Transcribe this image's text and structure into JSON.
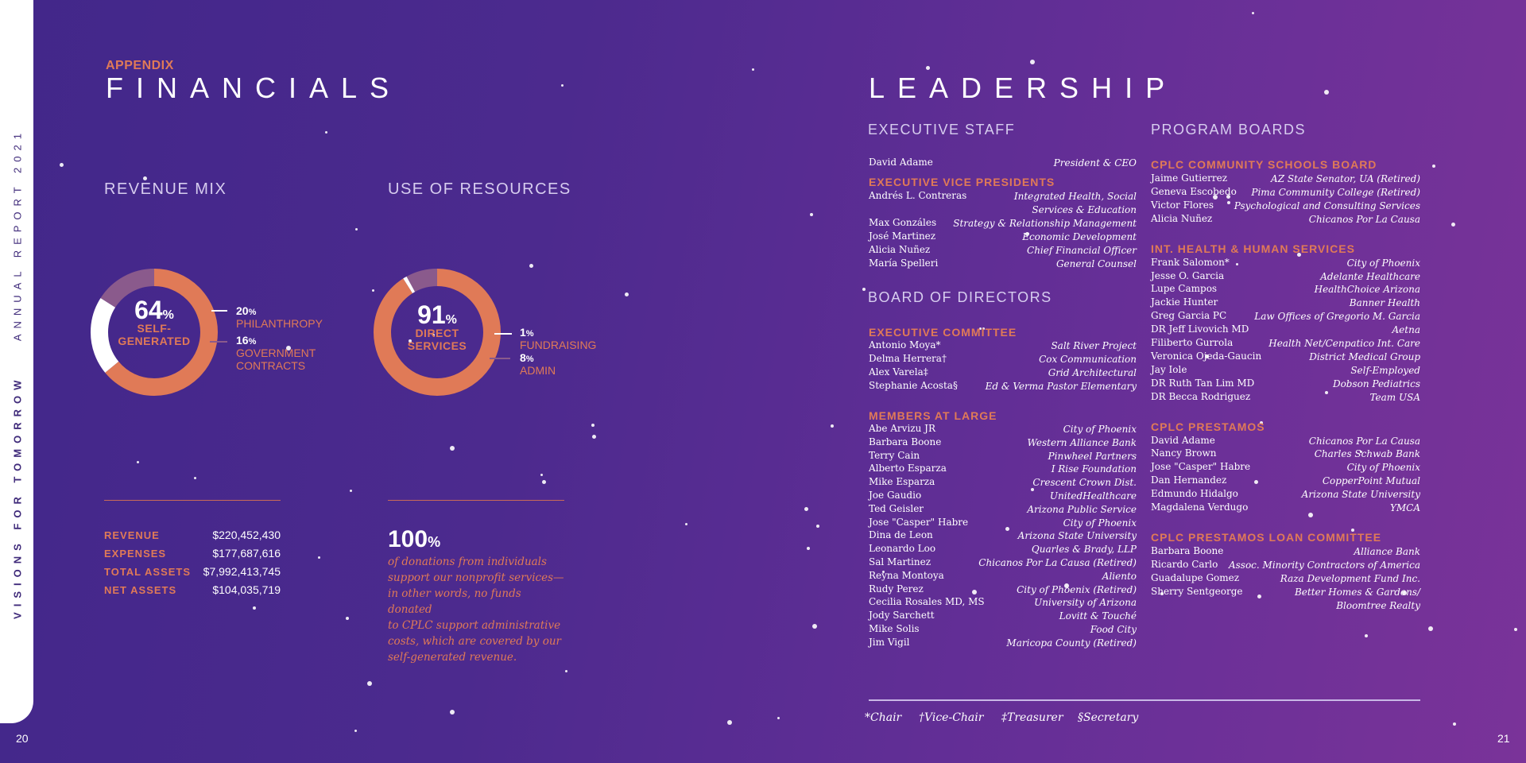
{
  "spine": {
    "bold": "VISIONS FOR TOMORROW",
    "light": "ANNUAL REPORT 2021"
  },
  "pages": {
    "left": "20",
    "right": "21"
  },
  "financials": {
    "eyebrow": "APPENDIX",
    "title": "FINANCIALS",
    "revenue_mix": {
      "heading": "REVENUE MIX",
      "center_pct": "64",
      "center_label_1": "SELF-",
      "center_label_2": "GENERATED",
      "legend": [
        {
          "pct": "20",
          "label": "PHILANTHROPY"
        },
        {
          "pct": "16",
          "label_1": "GOVERNMENT",
          "label_2": "CONTRACTS"
        }
      ]
    },
    "use_of_resources": {
      "heading": "USE OF RESOURCES",
      "center_pct": "91",
      "center_label_1": "DIRECT",
      "center_label_2": "SERVICES",
      "legend": [
        {
          "pct": "1",
          "label": "FUNDRAISING"
        },
        {
          "pct": "8",
          "label": "ADMIN"
        }
      ]
    },
    "stats": [
      {
        "label": "REVENUE",
        "value": "$220,452,430"
      },
      {
        "label": "EXPENSES",
        "value": "$177,687,616"
      },
      {
        "label": "TOTAL ASSETS",
        "value": "$7,992,413,745"
      },
      {
        "label": "NET ASSETS",
        "value": "$104,035,719"
      }
    ],
    "pct_sign": "%",
    "callout_pct": "100",
    "callout_lines": [
      "of donations from individuals",
      "support our nonprofit services—",
      "in other words, no funds donated",
      "to CPLC support administrative",
      "costs, which are covered by our",
      "self-generated revenue."
    ],
    "colors": {
      "accent": "#e07a57",
      "ring_dark": "#8a5a8c",
      "ring_white": "#ffffff"
    }
  },
  "leadership": {
    "title": "LEADERSHIP",
    "executive_staff": {
      "heading": "EXECUTIVE STAFF",
      "ceo": {
        "name": "David Adame",
        "role": "President & CEO"
      },
      "evp_heading": "EXECUTIVE VICE PRESIDENTS",
      "evps": [
        {
          "name": "Andrés L. Contreras",
          "role": "Integrated Health, Social",
          "role2": "Services & Education"
        },
        {
          "name": "Max Gonzáles",
          "role": "Strategy & Relationship Management"
        },
        {
          "name": "José Martinez",
          "role": "Economic Development"
        },
        {
          "name": "Alicia Nuñez",
          "role": "Chief Financial Officer"
        },
        {
          "name": "María Spelleri",
          "role": "General Counsel"
        }
      ]
    },
    "board": {
      "heading": "BOARD OF DIRECTORS",
      "exec_heading": "EXECUTIVE COMMITTEE",
      "exec": [
        {
          "name": "Antonio Moya*",
          "org": "Salt River Project"
        },
        {
          "name": "Delma Herrera†",
          "org": "Cox Communication"
        },
        {
          "name": "Alex Varela‡",
          "org": "Grid Architectural"
        },
        {
          "name": "Stephanie Acosta§",
          "org": "Ed & Verma Pastor Elementary"
        }
      ],
      "members_heading": "MEMBERS AT LARGE",
      "members": [
        {
          "name": "Abe Arvizu JR",
          "org": "City of Phoenix"
        },
        {
          "name": "Barbara Boone",
          "org": "Western Alliance Bank"
        },
        {
          "name": "Terry Cain",
          "org": "Pinwheel Partners"
        },
        {
          "name": "Alberto Esparza",
          "org": "I Rise Foundation"
        },
        {
          "name": "Mike Esparza",
          "org": "Crescent Crown Dist."
        },
        {
          "name": "Joe Gaudio",
          "org": "UnitedHealthcare"
        },
        {
          "name": "Ted Geisler",
          "org": "Arizona Public Service"
        },
        {
          "name": "Jose \"Casper\" Habre",
          "org": "City of Phoenix"
        },
        {
          "name": "Dina de Leon",
          "org": "Arizona State University"
        },
        {
          "name": "Leonardo Loo",
          "org": "Quarles & Brady, LLP"
        },
        {
          "name": "Sal Martinez",
          "org": "Chicanos Por La Causa (Retired)"
        },
        {
          "name": "Reyna Montoya",
          "org": "Aliento"
        },
        {
          "name": "Rudy Perez",
          "org": "City of Phoenix (Retired)"
        },
        {
          "name": "Cecilia Rosales MD, MS",
          "org": "University of Arizona"
        },
        {
          "name": "Jody Sarchett",
          "org": "Lovitt & Touché"
        },
        {
          "name": "Mike Solis",
          "org": "Food City"
        },
        {
          "name": "Jim Vigil",
          "org": "Maricopa County (Retired)"
        }
      ]
    },
    "program_boards": {
      "heading": "PROGRAM BOARDS",
      "groups": [
        {
          "heading": "CPLC COMMUNITY SCHOOLS BOARD",
          "rows": [
            {
              "name": "Jaime Gutierrez",
              "org": "AZ State Senator, UA (Retired)"
            },
            {
              "name": "Geneva Escobedo",
              "org": "Pima Community College (Retired)"
            },
            {
              "name": "Victor Flores",
              "org": "Psychological and Consulting Services"
            },
            {
              "name": "Alicia Nuñez",
              "org": "Chicanos Por La Causa"
            }
          ]
        },
        {
          "heading": "INT. HEALTH & HUMAN SERVICES",
          "rows": [
            {
              "name": "Frank Salomon*",
              "org": "City of Phoenix"
            },
            {
              "name": "Jesse O. Garcia",
              "org": "Adelante Healthcare"
            },
            {
              "name": "Lupe Campos",
              "org": "HealthChoice Arizona"
            },
            {
              "name": "Jackie Hunter",
              "org": "Banner Health"
            },
            {
              "name": "Greg Garcia PC",
              "org": "Law Offices of Gregorio M. Garcia"
            },
            {
              "name": "DR Jeff Livovich MD",
              "org": "Aetna"
            },
            {
              "name": "Filiberto Gurrola",
              "org": "Health Net/Cenpatico Int. Care"
            },
            {
              "name": "Veronica Ojeda-Gaucin",
              "org": "District Medical Group"
            },
            {
              "name": "Jay Iole",
              "org": "Self-Employed"
            },
            {
              "name": "DR Ruth Tan Lim MD",
              "org": "Dobson Pediatrics"
            },
            {
              "name": "DR Becca Rodriguez",
              "org": "Team USA"
            }
          ]
        },
        {
          "heading": "CPLC PRESTAMOS",
          "rows": [
            {
              "name": "David Adame",
              "org": "Chicanos Por La Causa"
            },
            {
              "name": "Nancy Brown",
              "org": "Charles Schwab Bank"
            },
            {
              "name": "Jose \"Casper\" Habre",
              "org": "City of Phoenix"
            },
            {
              "name": "Dan Hernandez",
              "org": "CopperPoint Mutual"
            },
            {
              "name": "Edmundo Hidalgo",
              "org": "Arizona State University"
            },
            {
              "name": "Magdalena Verdugo",
              "org": "YMCA"
            }
          ]
        },
        {
          "heading": "CPLC PRESTAMOS LOAN COMMITTEE",
          "rows": [
            {
              "name": "Barbara Boone",
              "org": "Alliance Bank"
            },
            {
              "name": "Ricardo Carlo",
              "org": "Assoc. Minority Contractors of America"
            },
            {
              "name": "Guadalupe Gomez",
              "org": "Raza Development Fund Inc."
            },
            {
              "name": "Sherry Sentgeorge",
              "org": "Better Homes & Gardens/",
              "org2": "Bloomtree Realty"
            }
          ]
        }
      ]
    },
    "footnotes": [
      "*Chair",
      "†Vice-Chair",
      "‡Treasurer",
      "§Secretary"
    ]
  }
}
